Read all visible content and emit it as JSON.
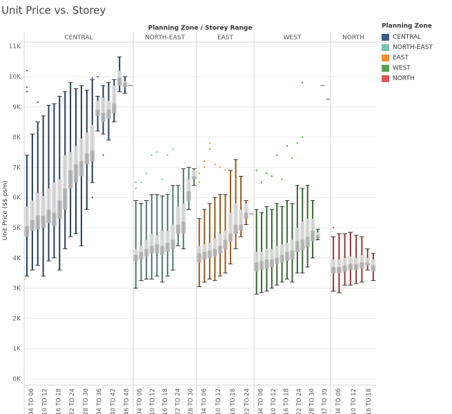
{
  "title": "Unit Price vs. Storey",
  "legend": {
    "title": "Planning Zone",
    "items": [
      {
        "label": "CENTRAL",
        "color": "#3a5f88"
      },
      {
        "label": "NORTH-EAST",
        "color": "#79c2b2"
      },
      {
        "label": "EAST",
        "color": "#f28e2b"
      },
      {
        "label": "WEST",
        "color": "#59a14f"
      },
      {
        "label": "NORTH",
        "color": "#e15759"
      }
    ]
  },
  "chart_data": {
    "type": "box",
    "title": "Unit Price vs. Storey",
    "header": "Planning Zone / Storey Range",
    "ylabel": "Unit Price ($$ psm)",
    "ylim": [
      0,
      11300
    ],
    "yticks": [
      0,
      1000,
      2000,
      3000,
      4000,
      5000,
      6000,
      7000,
      8000,
      9000,
      10000,
      11000
    ],
    "ytick_labels": [
      "0K",
      "1K",
      "2K",
      "3K",
      "4K",
      "5K",
      "6K",
      "7K",
      "8K",
      "9K",
      "10K",
      "11K"
    ],
    "grid": true,
    "legend_position": "right",
    "panels": [
      {
        "zone": "CENTRAL",
        "color": "#3a5f88",
        "categories": [
          "04 TO 06",
          "10 TO 12",
          "16 TO 18",
          "22 TO 24",
          "28 TO 30",
          "34 TO 36",
          "40 TO 42",
          "46 TO 48"
        ],
        "tick_labels": [
          "04 TO 06",
          "10 TO 12",
          "16 TO 18",
          "22 TO 24",
          "28 TO 30",
          "34 TO 36",
          "40 TO 42",
          "46 TO 48"
        ],
        "boxes": [
          {
            "min": 3400,
            "q1": 4700,
            "median": 5050,
            "q3": 5700,
            "max": 7400,
            "outliers": [
              10200,
              9650,
              9500
            ]
          },
          {
            "min": 3600,
            "q1": 4900,
            "median": 5250,
            "q3": 5900,
            "max": 8100,
            "outliers": []
          },
          {
            "min": 3750,
            "q1": 4950,
            "median": 5400,
            "q3": 6150,
            "max": 8500,
            "outliers": [
              9150
            ]
          },
          {
            "min": 3400,
            "q1": 5000,
            "median": 5400,
            "q3": 6050,
            "max": 8700,
            "outliers": []
          },
          {
            "min": 3900,
            "q1": 5150,
            "median": 5600,
            "q3": 6300,
            "max": 9050,
            "outliers": []
          },
          {
            "min": 4000,
            "q1": 5050,
            "median": 5500,
            "q3": 6500,
            "max": 9100,
            "outliers": []
          },
          {
            "min": 3600,
            "q1": 5300,
            "median": 5900,
            "q3": 6600,
            "max": 9350,
            "outliers": []
          },
          {
            "min": 4300,
            "q1": 5600,
            "median": 6300,
            "q3": 7400,
            "max": 9500,
            "outliers": []
          },
          {
            "min": 4700,
            "q1": 6300,
            "median": 6900,
            "q3": 7500,
            "max": 9800,
            "outliers": []
          },
          {
            "min": 4800,
            "q1": 6500,
            "median": 7100,
            "q3": 7700,
            "max": 9600,
            "outliers": []
          },
          {
            "min": 4400,
            "q1": 6700,
            "median": 7200,
            "q3": 7950,
            "max": 9700,
            "outliers": []
          },
          {
            "min": 5600,
            "q1": 7100,
            "median": 7450,
            "q3": 8150,
            "max": 9550,
            "outliers": []
          },
          {
            "min": 6500,
            "q1": 7200,
            "median": 7550,
            "q3": 8400,
            "max": 9900,
            "outliers": [
              6000,
              9950
            ]
          },
          {
            "min": 8200,
            "q1": 8700,
            "median": 8900,
            "q3": 9200,
            "max": 9350,
            "outliers": [
              10000
            ]
          },
          {
            "min": 8100,
            "q1": 8500,
            "median": 8800,
            "q3": 9300,
            "max": 9700,
            "outliers": [
              7400
            ]
          },
          {
            "min": 7900,
            "q1": 8600,
            "median": 8900,
            "q3": 9200,
            "max": 9800,
            "outliers": []
          },
          {
            "min": 8500,
            "q1": 8800,
            "median": 9100,
            "q3": 9700,
            "max": 9900,
            "outliers": []
          },
          {
            "min": 9500,
            "q1": 9700,
            "median": 9950,
            "q3": 10200,
            "max": 10650,
            "outliers": []
          },
          {
            "min": 9450,
            "q1": 9650,
            "median": 9800,
            "q3": 9850,
            "max": 10000,
            "outliers": []
          },
          {
            "min": 9700,
            "q1": 9700,
            "median": 9700,
            "q3": 9700,
            "max": 9700,
            "outliers": []
          }
        ]
      },
      {
        "zone": "NORTH-EAST",
        "color": "#79c2b2",
        "categories": [
          "04 TO 06",
          "10 TO 12",
          "16 TO 18",
          "22 TO 24",
          "28 TO 30"
        ],
        "tick_labels": [
          "04 TO 06",
          "10 TO 12",
          "16 TO 18",
          "22 TO 24",
          "28 TO 30"
        ],
        "boxes": [
          {
            "min": 3000,
            "q1": 3900,
            "median": 4100,
            "q3": 4300,
            "max": 5900,
            "outliers": [
              6300,
              6500
            ]
          },
          {
            "min": 3250,
            "q1": 3950,
            "median": 4200,
            "q3": 4400,
            "max": 5800,
            "outliers": [
              6500
            ]
          },
          {
            "min": 3300,
            "q1": 4050,
            "median": 4300,
            "q3": 4600,
            "max": 5900,
            "outliers": [
              6800
            ]
          },
          {
            "min": 3300,
            "q1": 4150,
            "median": 4400,
            "q3": 4800,
            "max": 6100,
            "outliers": [
              7400
            ]
          },
          {
            "min": 3400,
            "q1": 4150,
            "median": 4450,
            "q3": 4750,
            "max": 6100,
            "outliers": [
              7500
            ]
          },
          {
            "min": 3200,
            "q1": 4100,
            "median": 4400,
            "q3": 4900,
            "max": 6050,
            "outliers": [
              6600
            ]
          },
          {
            "min": 3400,
            "q1": 4200,
            "median": 4500,
            "q3": 4900,
            "max": 6100,
            "outliers": [
              7400
            ]
          },
          {
            "min": 3600,
            "q1": 4300,
            "median": 4600,
            "q3": 5100,
            "max": 6400,
            "outliers": [
              7600
            ]
          },
          {
            "min": 4400,
            "q1": 4800,
            "median": 5100,
            "q3": 5700,
            "max": 6400,
            "outliers": []
          },
          {
            "min": 4300,
            "q1": 4800,
            "median": 5200,
            "q3": 5800,
            "max": 6950,
            "outliers": []
          },
          {
            "min": 5600,
            "q1": 5900,
            "median": 6200,
            "q3": 6600,
            "max": 7000,
            "outliers": []
          },
          {
            "min": 6400,
            "q1": 6600,
            "median": 6700,
            "q3": 6900,
            "max": 6950,
            "outliers": []
          }
        ]
      },
      {
        "zone": "EAST",
        "color": "#f28e2b",
        "categories": [
          "04 TO 06",
          "10 TO 12",
          "16 TO 18",
          "22 TO 24"
        ],
        "tick_labels": [
          "04 TO 06",
          "10 TO 12",
          "16 TO 18",
          "22 TO 24"
        ],
        "boxes": [
          {
            "min": 3050,
            "q1": 3850,
            "median": 4150,
            "q3": 4400,
            "max": 5300,
            "outliers": [
              6500,
              6800
            ]
          },
          {
            "min": 3200,
            "q1": 3950,
            "median": 4200,
            "q3": 4450,
            "max": 5600,
            "outliers": [
              7000,
              7200
            ]
          },
          {
            "min": 3300,
            "q1": 4000,
            "median": 4250,
            "q3": 4500,
            "max": 5800,
            "outliers": [
              7800,
              7600
            ]
          },
          {
            "min": 3250,
            "q1": 4050,
            "median": 4300,
            "q3": 4650,
            "max": 6000,
            "outliers": [
              7100
            ]
          },
          {
            "min": 3400,
            "q1": 4150,
            "median": 4400,
            "q3": 4800,
            "max": 6100,
            "outliers": [
              7000
            ]
          },
          {
            "min": 3500,
            "q1": 4300,
            "median": 4600,
            "q3": 4900,
            "max": 6100,
            "outliers": [
              6900
            ]
          },
          {
            "min": 3800,
            "q1": 4550,
            "median": 4800,
            "q3": 5500,
            "max": 6900,
            "outliers": []
          },
          {
            "min": 4300,
            "q1": 4800,
            "median": 5100,
            "q3": 5800,
            "max": 7250,
            "outliers": []
          },
          {
            "min": 4700,
            "q1": 4900,
            "median": 5100,
            "q3": 5600,
            "max": 6700,
            "outliers": []
          },
          {
            "min": 5100,
            "q1": 5300,
            "median": 5500,
            "q3": 5800,
            "max": 5900,
            "outliers": []
          },
          {
            "min": 5450,
            "q1": 5450,
            "median": 5450,
            "q3": 5450,
            "max": 5450,
            "outliers": []
          }
        ]
      },
      {
        "zone": "WEST",
        "color": "#59a14f",
        "categories": [
          "04 TO 06",
          "10 TO 12",
          "16 TO 18",
          "22 TO 24",
          "28 TO 30",
          "37 TO 39"
        ],
        "tick_labels": [
          "04 TO 06",
          "10 TO 12",
          "16 TO 18",
          "22 TO 24",
          "28 TO 30",
          "37 TO 39"
        ],
        "boxes": [
          {
            "min": 2800,
            "q1": 3550,
            "median": 3850,
            "q3": 4200,
            "max": 5600,
            "outliers": [
              6900
            ]
          },
          {
            "min": 2850,
            "q1": 3600,
            "median": 3900,
            "q3": 4200,
            "max": 5500,
            "outliers": [
              6500
            ]
          },
          {
            "min": 2900,
            "q1": 3650,
            "median": 3950,
            "q3": 4300,
            "max": 5700,
            "outliers": [
              6800
            ]
          },
          {
            "min": 3000,
            "q1": 3700,
            "median": 3950,
            "q3": 4300,
            "max": 5600,
            "outliers": [
              6700
            ]
          },
          {
            "min": 3100,
            "q1": 3800,
            "median": 4000,
            "q3": 4400,
            "max": 5800,
            "outliers": [
              7400
            ]
          },
          {
            "min": 3200,
            "q1": 3850,
            "median": 4100,
            "q3": 4450,
            "max": 5700,
            "outliers": [
              6600
            ]
          },
          {
            "min": 3300,
            "q1": 3900,
            "median": 4200,
            "q3": 4500,
            "max": 5900,
            "outliers": [
              7700
            ]
          },
          {
            "min": 3200,
            "q1": 3950,
            "median": 4250,
            "q3": 4600,
            "max": 5800,
            "outliers": [
              7300
            ]
          },
          {
            "min": 3500,
            "q1": 4200,
            "median": 4550,
            "q3": 5000,
            "max": 6400,
            "outliers": [
              7800
            ]
          },
          {
            "min": 3500,
            "q1": 4250,
            "median": 4600,
            "q3": 5200,
            "max": 6300,
            "outliers": [
              9800,
              8000
            ]
          },
          {
            "min": 3700,
            "q1": 4350,
            "median": 4700,
            "q3": 5300,
            "max": 6400,
            "outliers": []
          },
          {
            "min": 4000,
            "q1": 4550,
            "median": 4900,
            "q3": 5300,
            "max": 5900,
            "outliers": []
          },
          {
            "min": 4600,
            "q1": 4650,
            "median": 4750,
            "q3": 4850,
            "max": 4950,
            "outliers": []
          },
          {
            "min": 9700,
            "q1": 9700,
            "median": 9700,
            "q3": 9700,
            "max": 9700,
            "outliers": []
          },
          {
            "min": 9250,
            "q1": 9250,
            "median": 9250,
            "q3": 9250,
            "max": 9250,
            "outliers": []
          }
        ]
      },
      {
        "zone": "NORTH",
        "color": "#e15759",
        "categories": [
          "04 TO 06",
          "10 TO 12",
          "16 TO 18"
        ],
        "tick_labels": [
          "04 TO 06",
          "10 TO 12",
          "16 TO 18"
        ],
        "boxes": [
          {
            "min": 2900,
            "q1": 3500,
            "median": 3700,
            "q3": 3950,
            "max": 4700,
            "outliers": [
              5000
            ]
          },
          {
            "min": 2850,
            "q1": 3500,
            "median": 3700,
            "q3": 3950,
            "max": 4800,
            "outliers": []
          },
          {
            "min": 3100,
            "q1": 3550,
            "median": 3750,
            "q3": 4000,
            "max": 4800,
            "outliers": []
          },
          {
            "min": 3100,
            "q1": 3600,
            "median": 3800,
            "q3": 4050,
            "max": 4850,
            "outliers": []
          },
          {
            "min": 3150,
            "q1": 3600,
            "median": 3800,
            "q3": 4000,
            "max": 4750,
            "outliers": []
          },
          {
            "min": 3200,
            "q1": 3650,
            "median": 3850,
            "q3": 4100,
            "max": 4700,
            "outliers": []
          },
          {
            "min": 3600,
            "q1": 3750,
            "median": 3850,
            "q3": 4000,
            "max": 4300,
            "outliers": []
          },
          {
            "min": 3250,
            "q1": 3550,
            "median": 3750,
            "q3": 3950,
            "max": 4150,
            "outliers": []
          }
        ]
      }
    ]
  }
}
